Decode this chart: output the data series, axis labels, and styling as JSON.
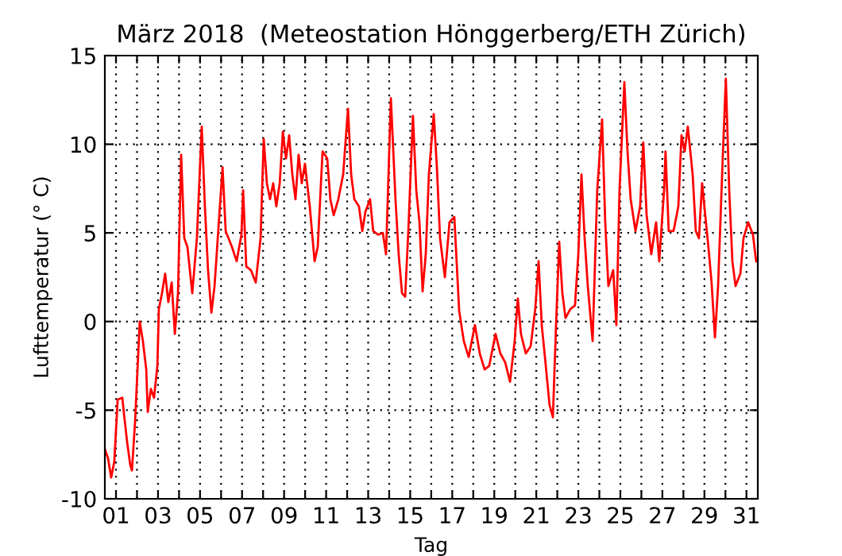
{
  "chart_data": {
    "type": "line",
    "title": "März 2018  (Meteostation Hönggerberg/ETH Zürich)",
    "xlabel": "Tag",
    "ylabel": "Lufttemperatur (° C)",
    "xlim": [
      0.47,
      31.54
    ],
    "ylim": [
      -10,
      15
    ],
    "yticks": [
      -10,
      -5,
      0,
      5,
      10,
      15
    ],
    "xticks": [
      {
        "value": 1,
        "label": "01"
      },
      {
        "value": 2,
        "label": null
      },
      {
        "value": 3,
        "label": "03"
      },
      {
        "value": 4,
        "label": null
      },
      {
        "value": 5,
        "label": "05"
      },
      {
        "value": 6,
        "label": null
      },
      {
        "value": 7,
        "label": "07"
      },
      {
        "value": 8,
        "label": null
      },
      {
        "value": 9,
        "label": "09"
      },
      {
        "value": 10,
        "label": null
      },
      {
        "value": 11,
        "label": "11"
      },
      {
        "value": 12,
        "label": null
      },
      {
        "value": 13,
        "label": "13"
      },
      {
        "value": 14,
        "label": null
      },
      {
        "value": 15,
        "label": "15"
      },
      {
        "value": 16,
        "label": null
      },
      {
        "value": 17,
        "label": "17"
      },
      {
        "value": 18,
        "label": null
      },
      {
        "value": 19,
        "label": "19"
      },
      {
        "value": 20,
        "label": null
      },
      {
        "value": 21,
        "label": "21"
      },
      {
        "value": 22,
        "label": null
      },
      {
        "value": 23,
        "label": "23"
      },
      {
        "value": 24,
        "label": null
      },
      {
        "value": 25,
        "label": "25"
      },
      {
        "value": 26,
        "label": null
      },
      {
        "value": 27,
        "label": "27"
      },
      {
        "value": 28,
        "label": null
      },
      {
        "value": 29,
        "label": "29"
      },
      {
        "value": 30,
        "label": null
      },
      {
        "value": 31,
        "label": "31"
      }
    ],
    "grid": true,
    "line_style": "solid",
    "marker": "none",
    "series": [
      {
        "color": "#ff0000",
        "x": [
          0.47,
          0.62,
          0.77,
          0.92,
          1.08,
          1.3,
          1.38,
          1.53,
          1.68,
          1.76,
          1.91,
          2.13,
          2.28,
          2.44,
          2.51,
          2.66,
          2.81,
          2.97,
          3.04,
          3.19,
          3.34,
          3.49,
          3.65,
          3.8,
          3.95,
          4.1,
          4.25,
          4.4,
          4.63,
          4.85,
          5.08,
          5.23,
          5.38,
          5.54,
          5.69,
          6.07,
          6.22,
          6.52,
          6.74,
          6.97,
          7.05,
          7.2,
          7.42,
          7.65,
          7.88,
          8.03,
          8.18,
          8.33,
          8.48,
          8.63,
          8.79,
          8.94,
          9.09,
          9.24,
          9.39,
          9.54,
          9.69,
          9.84,
          9.99,
          10.22,
          10.45,
          10.6,
          10.83,
          11.05,
          11.2,
          11.36,
          11.58,
          11.81,
          12.04,
          12.19,
          12.34,
          12.56,
          12.72,
          12.87,
          13.09,
          13.24,
          13.47,
          13.7,
          13.85,
          14.08,
          14.3,
          14.45,
          14.61,
          14.76,
          14.91,
          15.13,
          15.29,
          15.44,
          15.59,
          15.74,
          15.89,
          16.12,
          16.27,
          16.42,
          16.65,
          16.87,
          17.1,
          17.33,
          17.55,
          17.78,
          18.08,
          18.31,
          18.54,
          18.76,
          19.06,
          19.29,
          19.52,
          19.75,
          19.97,
          20.12,
          20.27,
          20.5,
          20.73,
          20.95,
          21.11,
          21.26,
          21.41,
          21.63,
          21.79,
          21.94,
          22.09,
          22.24,
          22.39,
          22.62,
          22.84,
          23.0,
          23.15,
          23.3,
          23.45,
          23.68,
          23.9,
          24.13,
          24.28,
          24.43,
          24.66,
          24.81,
          24.96,
          25.19,
          25.34,
          25.49,
          25.72,
          25.94,
          26.09,
          26.25,
          26.47,
          26.7,
          26.85,
          27.08,
          27.15,
          27.3,
          27.53,
          27.76,
          27.91,
          28.06,
          28.21,
          28.44,
          28.59,
          28.74,
          28.89,
          29.04,
          29.19,
          29.34,
          29.5,
          29.65,
          29.87,
          30.02,
          30.18,
          30.33,
          30.48,
          30.71,
          30.86,
          31.08,
          31.31,
          31.46
        ],
        "values": [
          -7.2,
          -7.7,
          -8.8,
          -7.9,
          -4.4,
          -4.3,
          -5.2,
          -6.8,
          -8.1,
          -8.4,
          -5.6,
          0,
          -1.1,
          -2.7,
          -5.1,
          -3.8,
          -4.3,
          -2.5,
          0.7,
          1.6,
          2.7,
          1.1,
          2.2,
          -0.7,
          1.6,
          9.4,
          4.7,
          4.2,
          1.6,
          4.7,
          11.0,
          6.5,
          2.9,
          0.5,
          2.0,
          8.7,
          5.1,
          4.2,
          3.4,
          4.9,
          7.4,
          3.1,
          2.9,
          2.2,
          4.7,
          10.3,
          7.8,
          6.9,
          7.8,
          6.5,
          7.8,
          10.7,
          9.2,
          10.5,
          8.3,
          6.9,
          9.4,
          7.8,
          8.9,
          6.5,
          3.4,
          4.2,
          9.6,
          9.2,
          6.9,
          6.0,
          6.9,
          8.3,
          12.0,
          8.3,
          6.9,
          6.5,
          5.1,
          6.2,
          6.9,
          5.1,
          4.9,
          5.0,
          3.8,
          12.6,
          6.9,
          3.8,
          1.6,
          1.4,
          5.1,
          11.6,
          7.4,
          5.6,
          1.7,
          3.8,
          8.3,
          11.7,
          8.7,
          4.7,
          2.5,
          5.6,
          5.9,
          0.6,
          -1.1,
          -2.0,
          -0.2,
          -1.8,
          -2.7,
          -2.5,
          -0.7,
          -1.8,
          -2.3,
          -3.4,
          -1.1,
          1.3,
          -0.7,
          -1.8,
          -1.4,
          0.7,
          3.4,
          -0.2,
          -2.0,
          -4.7,
          -5.4,
          -0.2,
          4.5,
          1.6,
          0.2,
          0.7,
          0.9,
          3.8,
          8.3,
          4.7,
          2.0,
          -1.1,
          7.4,
          11.4,
          5.6,
          2.0,
          2.9,
          -0.2,
          7.4,
          13.5,
          9.6,
          6.9,
          5.1,
          6.5,
          10.1,
          6.0,
          3.8,
          5.6,
          3.4,
          7.4,
          9.6,
          5.1,
          5.1,
          6.5,
          10.5,
          9.6,
          11.0,
          8.3,
          5.1,
          4.7,
          7.8,
          6.0,
          4.2,
          2.2,
          -0.9,
          2.0,
          9.2,
          13.7,
          7.4,
          3.4,
          2.0,
          2.7,
          4.7,
          5.6,
          4.9,
          3.4
        ]
      }
    ]
  }
}
